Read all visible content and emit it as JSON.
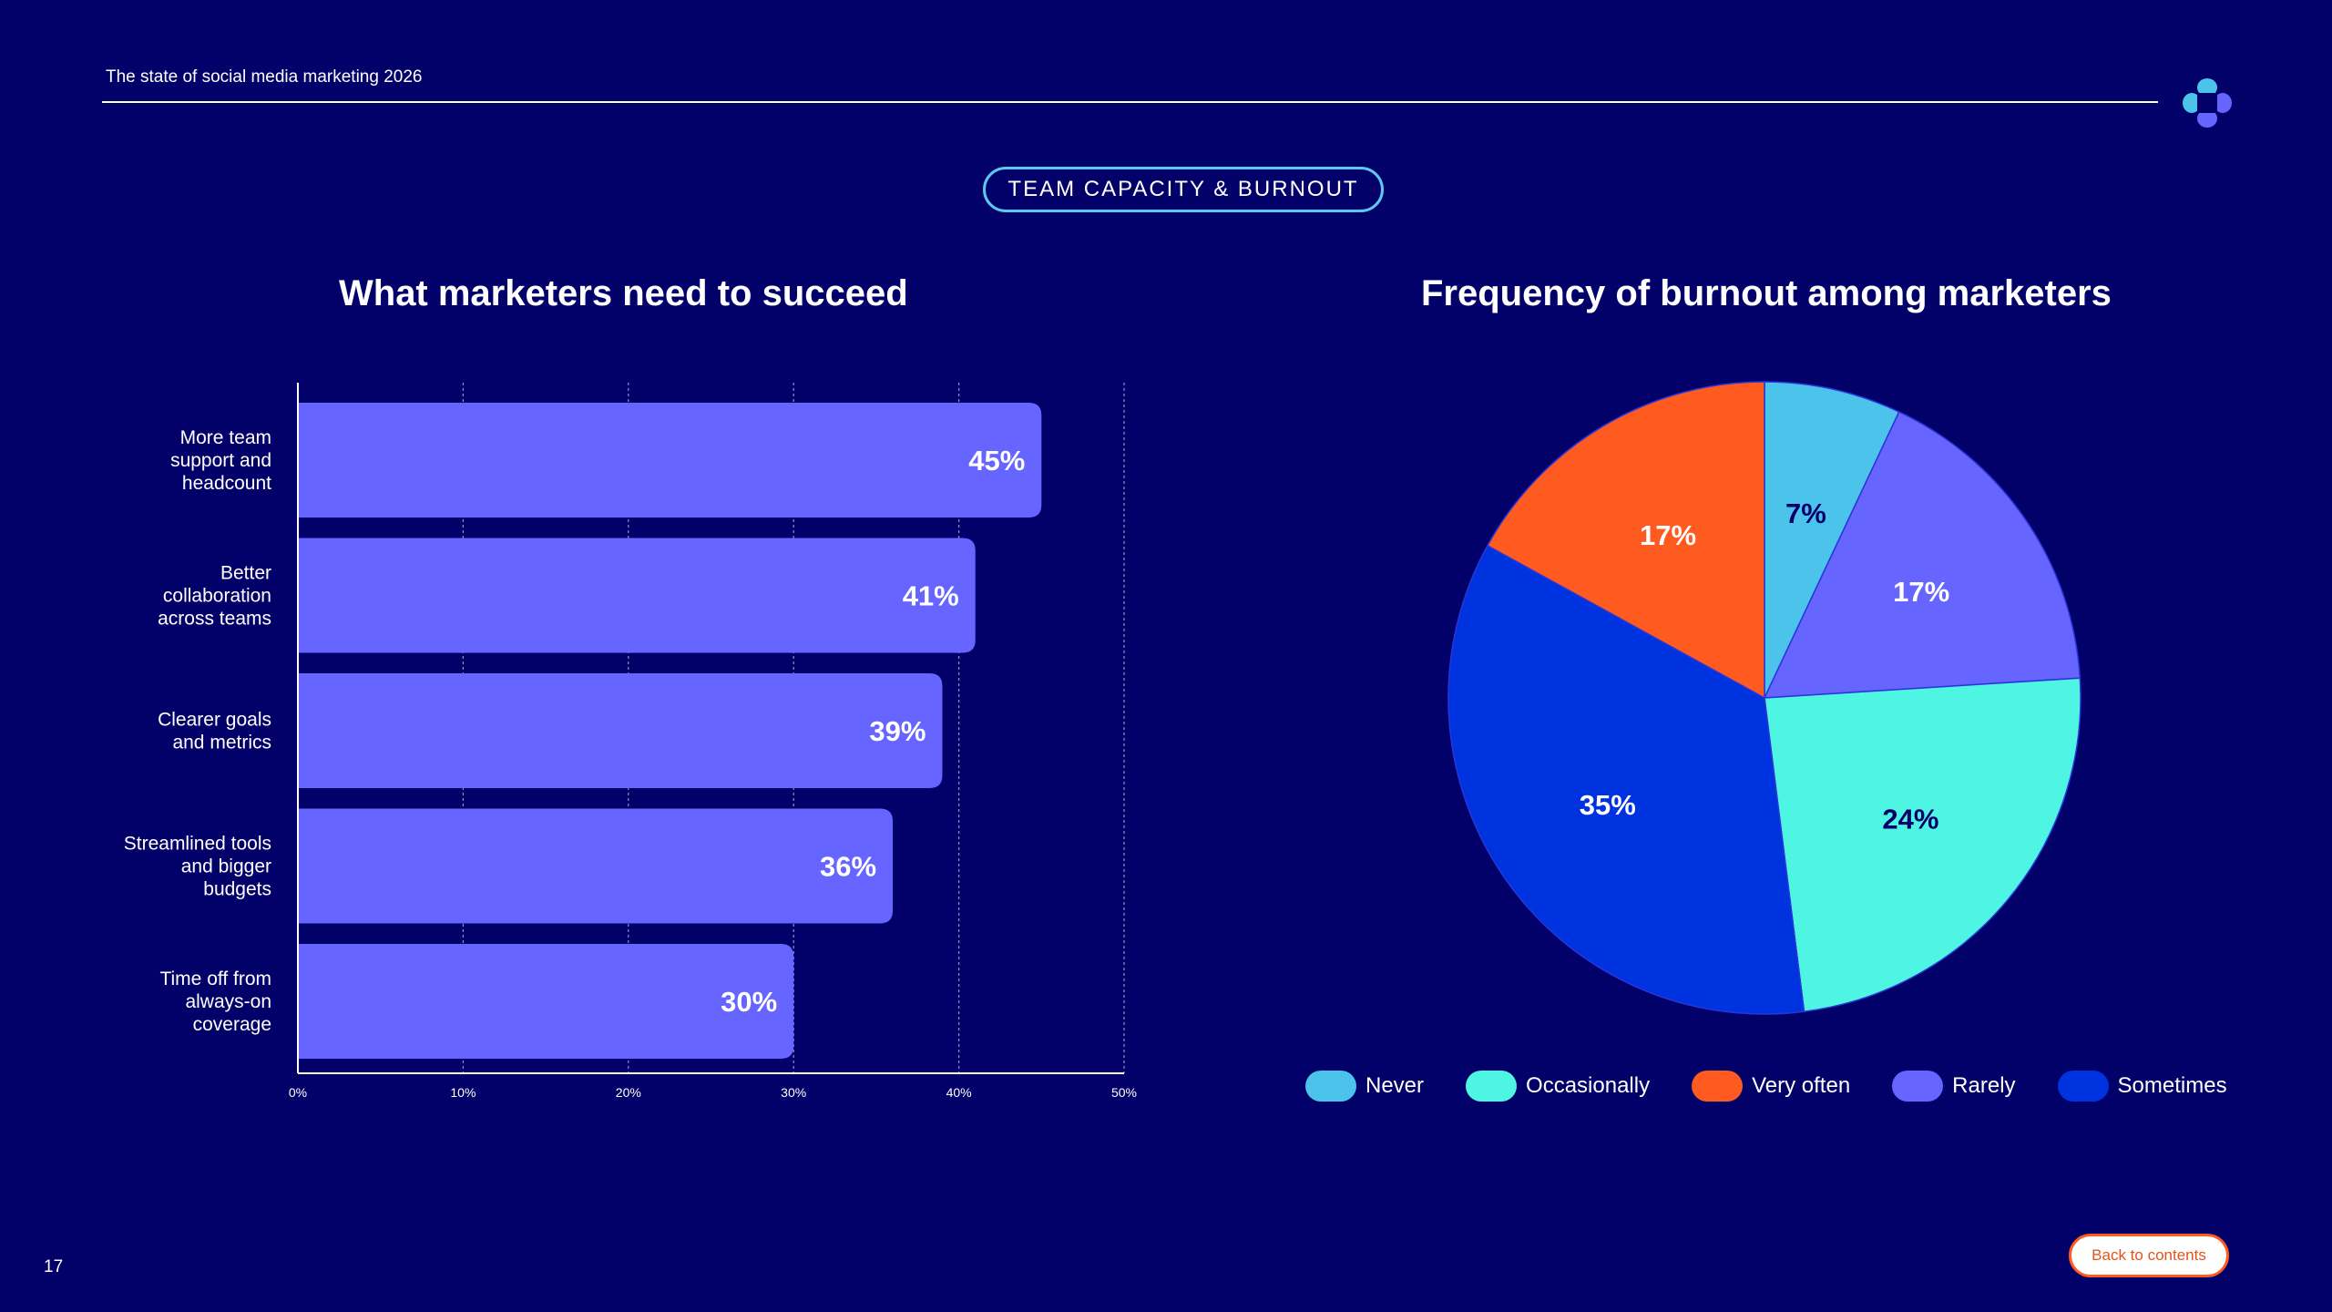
{
  "header": {
    "title": "The state of social media marketing 2026"
  },
  "section_tag": "TEAM CAPACITY & BURNOUT",
  "page_number": "17",
  "back_button_label": "Back to contents",
  "colors": {
    "background": "#02016A",
    "bar": "#6765FF",
    "accent_orange": "#FF5A1F",
    "tag_border": "#5CC8F2"
  },
  "logo_icon": "four-petal-logo-icon",
  "chart_data": [
    {
      "type": "bar",
      "orientation": "horizontal",
      "title": "What marketers need to succeed",
      "categories": [
        [
          "More team",
          "support and",
          "headcount"
        ],
        [
          "Better",
          "collaboration",
          "across teams"
        ],
        [
          "Clearer goals",
          "and metrics"
        ],
        [
          "Streamlined tools",
          "and bigger",
          "budgets"
        ],
        [
          "Time off from",
          "always-on",
          "coverage"
        ]
      ],
      "values": [
        45,
        41,
        39,
        36,
        30
      ],
      "value_labels": [
        "45%",
        "41%",
        "39%",
        "36%",
        "30%"
      ],
      "xlim": [
        0,
        50
      ],
      "xticks": [
        0,
        10,
        20,
        30,
        40,
        50
      ],
      "xtick_labels": [
        "0%",
        "10%",
        "20%",
        "30%",
        "40%",
        "50%"
      ],
      "grid": "vertical dotted",
      "color": "#6765FF"
    },
    {
      "type": "pie",
      "title": "Frequency of burnout among marketers",
      "slices": [
        {
          "name": "Never",
          "value": 7,
          "label": "7%",
          "color": "#4CC3EA",
          "label_color": "#02016A"
        },
        {
          "name": "Rarely",
          "value": 17,
          "label": "17%",
          "color": "#6765FF",
          "label_color": "#ffffff"
        },
        {
          "name": "Occasionally",
          "value": 24,
          "label": "24%",
          "color": "#4FF5E3",
          "label_color": "#02016A"
        },
        {
          "name": "Sometimes",
          "value": 35,
          "label": "35%",
          "color": "#0033E0",
          "label_color": "#ffffff"
        },
        {
          "name": "Very often",
          "value": 17,
          "label": "17%",
          "color": "#FF5A1F",
          "label_color": "#ffffff"
        }
      ],
      "legend": [
        {
          "name": "Never",
          "color": "#4CC3EA"
        },
        {
          "name": "Occasionally",
          "color": "#4FF5E3"
        },
        {
          "name": "Very often",
          "color": "#FF5A1F"
        },
        {
          "name": "Rarely",
          "color": "#6765FF"
        },
        {
          "name": "Sometimes",
          "color": "#0033E0"
        }
      ],
      "legend_placement": "bottom"
    }
  ]
}
